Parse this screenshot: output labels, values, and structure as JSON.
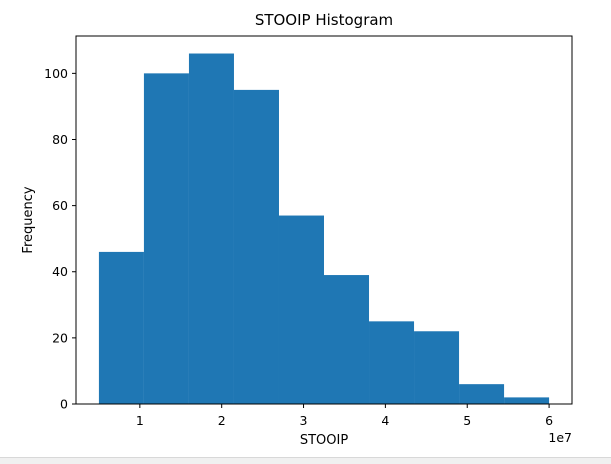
{
  "chart_data": {
    "type": "bar",
    "title": "STOOIP Histogram",
    "xlabel": "STOOIP",
    "ylabel": "Frequency",
    "x_offset_label": "1e7",
    "bins": [
      {
        "start": 0.5,
        "end": 1.05,
        "count": 46
      },
      {
        "start": 1.05,
        "end": 1.6,
        "count": 100
      },
      {
        "start": 1.6,
        "end": 2.15,
        "count": 106
      },
      {
        "start": 2.15,
        "end": 2.7,
        "count": 95
      },
      {
        "start": 2.7,
        "end": 3.25,
        "count": 57
      },
      {
        "start": 3.25,
        "end": 3.8,
        "count": 39
      },
      {
        "start": 3.8,
        "end": 4.35,
        "count": 25
      },
      {
        "start": 4.35,
        "end": 4.9,
        "count": 22
      },
      {
        "start": 4.9,
        "end": 5.45,
        "count": 6
      },
      {
        "start": 5.45,
        "end": 6.0,
        "count": 2
      }
    ],
    "xlim": [
      0.22,
      6.28
    ],
    "ylim": [
      0,
      111.3
    ],
    "x_ticks": [
      1,
      2,
      3,
      4,
      5,
      6
    ],
    "y_ticks": [
      0,
      20,
      40,
      60,
      80,
      100
    ],
    "bar_color": "#1f77b4",
    "grid": false,
    "legend": "none"
  }
}
